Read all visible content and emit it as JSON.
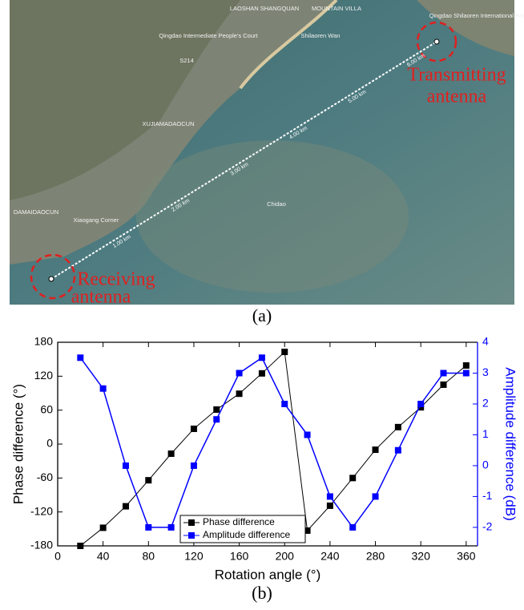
{
  "map": {
    "places": [
      "LAOSHAN SHANGQUAN",
      "MOUNTAIN VILLA",
      "Shilaoren Wan",
      "Qingdao Intermediate People's Court",
      "Qingdao Shilaoren International Beach",
      "XUJIAMADAOCUN",
      "DAMAIDAOCUN",
      "Xiaogang Corner",
      "Chidao",
      "S214"
    ],
    "distances": [
      "1.00 km",
      "2.00 km",
      "3.00 km",
      "4.00 km",
      "5.00 km",
      "6.00 km"
    ],
    "transmitter_label": [
      "Transmitting",
      "antenna"
    ],
    "receiver_label": [
      "Receiving",
      "antenna"
    ],
    "caption": "(a)"
  },
  "caption": "(b)",
  "chart_data": {
    "type": "line",
    "x_label": "Rotation angle (°)",
    "y_label": "Phase difference (°)",
    "y2_label": "Amplitude difference (dB)",
    "x": [
      20,
      40,
      60,
      80,
      100,
      120,
      140,
      160,
      180,
      200,
      220,
      240,
      260,
      280,
      300,
      320,
      340,
      360
    ],
    "series": [
      {
        "name": "Phase difference",
        "color": "#000000",
        "values": [
          -180,
          -148,
          -110,
          -64,
          -17,
          27,
          61,
          89,
          125,
          163,
          -153,
          -109,
          -60,
          -10,
          30,
          65,
          105,
          139
        ]
      },
      {
        "name": "Amplitude difference",
        "color": "#0000ff",
        "axis": "y2",
        "values": [
          3.5,
          2.5,
          0,
          -2,
          -2,
          0,
          1.5,
          3,
          3.5,
          2,
          1,
          -1,
          -2,
          -1,
          0.5,
          2,
          3,
          3
        ]
      }
    ],
    "xlim": [
      0,
      370
    ],
    "xticks": [
      0,
      40,
      80,
      120,
      160,
      200,
      240,
      280,
      320,
      360
    ],
    "ylim": [
      -180,
      180
    ],
    "yticks": [
      -180,
      -120,
      -60,
      0,
      60,
      120,
      180
    ],
    "y2lim": [
      -2.6,
      4
    ],
    "y2ticks": [
      -2,
      -1,
      0,
      1,
      2,
      3,
      4
    ],
    "legend": "bottom"
  }
}
